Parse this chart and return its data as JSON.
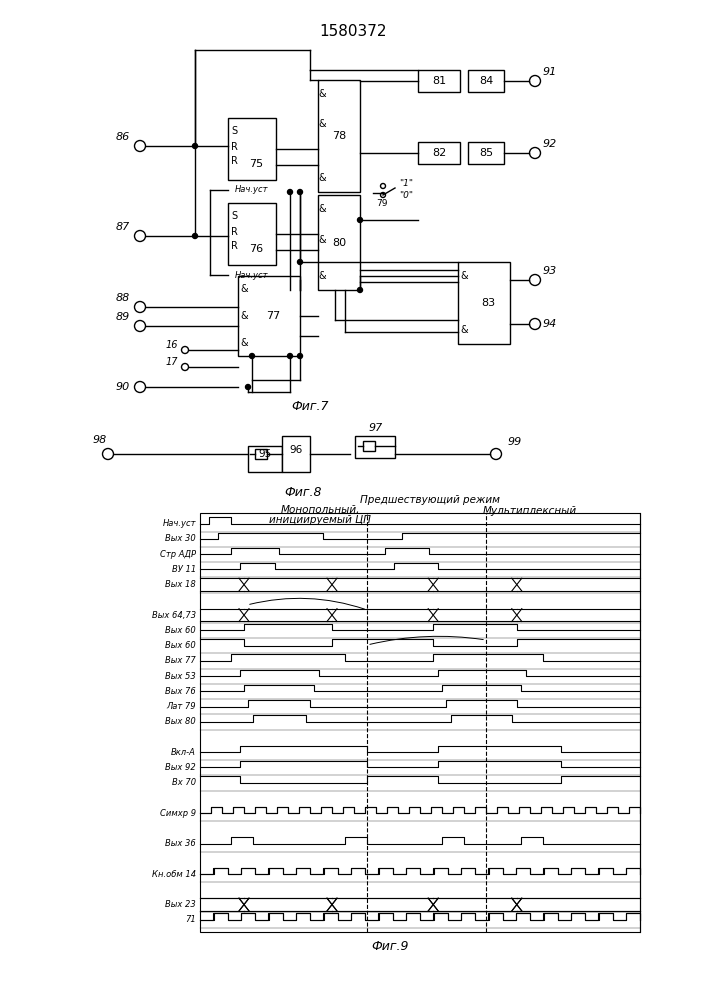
{
  "title": "1580372",
  "fig7_label": "Фиг.7",
  "fig8_label": "Фиг.8",
  "fig9_label": "Фиг.9",
  "bg_color": "#ffffff",
  "fig9_header1": "Предшествующий режим",
  "fig9_header2": "Монопольный,",
  "fig9_header3": "инициируемый ЦП",
  "fig9_header4": "Мультиплексный",
  "timing_labels": [
    "Нач.уст",
    "Вых 30",
    "Стр АДР",
    "ВУ 11",
    "Вых 18",
    "",
    "Вых 64,73",
    "Вых 60",
    "Вых 60",
    "Вых 77",
    "Вых 53",
    "Вых 76",
    "Лат 79",
    "Вых 80",
    "",
    "Вкл-А",
    "Вых 92",
    "Вх 70",
    "",
    "Симхр 9",
    "",
    "Вых 36",
    "",
    "Кн.обм 14",
    "",
    "Вых 23",
    "71"
  ]
}
